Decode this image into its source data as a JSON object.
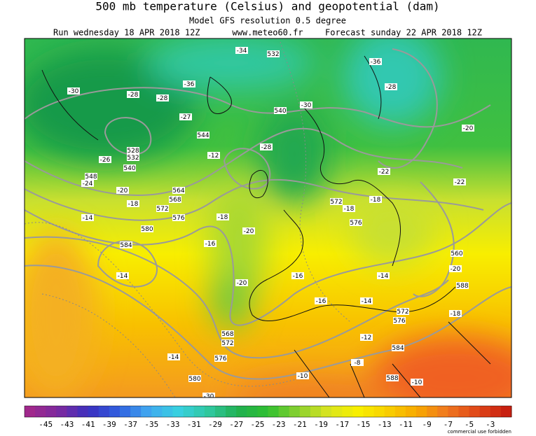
{
  "header": {
    "title": "500 mb temperature (Celsius) and geopotential (dam)",
    "subtitle": "Model GFS resolution 0.5 degree",
    "run": "Run wednesday 18 APR 2018 12Z",
    "site": "www.meteo60.fr",
    "forecast": "Forecast sunday 22 APR 2018 12Z"
  },
  "map": {
    "labels": [
      -30,
      -28,
      -28,
      -26,
      528,
      532,
      540,
      -24,
      548,
      -20,
      -18,
      564,
      568,
      572,
      576,
      -14,
      580,
      584,
      -14,
      -16,
      -18,
      -20,
      -12,
      544,
      -27,
      -36,
      -34,
      532,
      -30,
      540,
      -28,
      -20,
      568,
      572,
      576,
      -14,
      580,
      -30,
      -16,
      -16,
      -14,
      -14,
      -12,
      572,
      576,
      584,
      -10,
      -8,
      588,
      -10,
      -18,
      576,
      572,
      -18,
      -22,
      -36,
      -28,
      -20,
      -22,
      560,
      -20,
      -18,
      588
    ]
  },
  "colorbar": {
    "range": [
      -47,
      -1
    ],
    "ticks": [
      -45,
      -43,
      -41,
      -39,
      -37,
      -35,
      -33,
      -31,
      -29,
      -27,
      -25,
      -23,
      -21,
      -19,
      -17,
      -15,
      -13,
      -11,
      -9,
      -7,
      -5,
      -3
    ],
    "colors": [
      "#a0288c",
      "#7a2aa0",
      "#3a30c0",
      "#3060e0",
      "#40a8f0",
      "#38d0e0",
      "#30c8a0",
      "#20b050",
      "#30c030",
      "#88d030",
      "#d8e420",
      "#f8f000",
      "#f8d000",
      "#f8a800",
      "#f07820",
      "#e04818",
      "#c82010"
    ]
  },
  "footer": "commercial use forbidden"
}
